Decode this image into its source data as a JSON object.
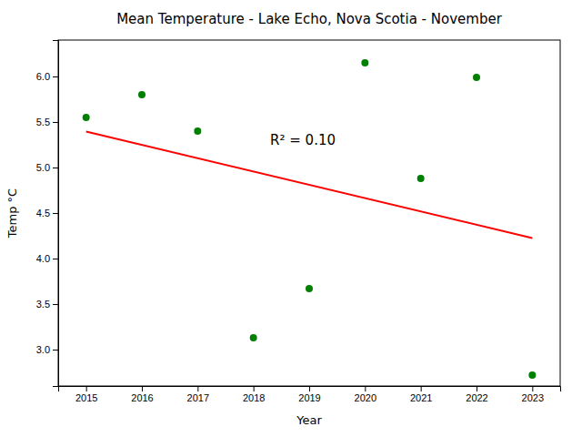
{
  "chart_data": {
    "type": "scatter",
    "title": "Mean Temperature - Lake Echo, Nova Scotia - November",
    "x_label": "Year",
    "y_label": "Temp °C",
    "series": [
      {
        "type": "scatter",
        "color": "#008000",
        "marker": "circle",
        "x": [
          2015,
          2016,
          2017,
          2018,
          2019,
          2020,
          2021,
          2022,
          2023
        ],
        "values": [
          5.55,
          5.8,
          5.4,
          3.13,
          3.67,
          6.15,
          4.88,
          5.99,
          2.72
        ]
      },
      {
        "type": "line",
        "color": "red",
        "line_style": "solid",
        "x": [
          2015,
          2023
        ],
        "values": [
          5.394666666666667,
          4.225333333333333
        ]
      }
    ],
    "annotations": [
      {
        "text": "R² = 0.10",
        "x": 2018.3,
        "y": 5.25
      }
    ],
    "xlim": [
      2014.5,
      2023.5
    ],
    "xticks": [
      2015,
      2016,
      2017,
      2018,
      2019,
      2020,
      2021,
      2022,
      2023
    ],
    "ylim": [
      2.6,
      6.4
    ],
    "yticks": [
      {
        "value": 3,
        "label": "3.0"
      },
      3.5,
      {
        "value": 4,
        "label": "4.0"
      },
      4.5,
      {
        "value": 5,
        "label": "5.0"
      },
      5.5,
      {
        "value": 6,
        "label": "6.0"
      }
    ]
  }
}
